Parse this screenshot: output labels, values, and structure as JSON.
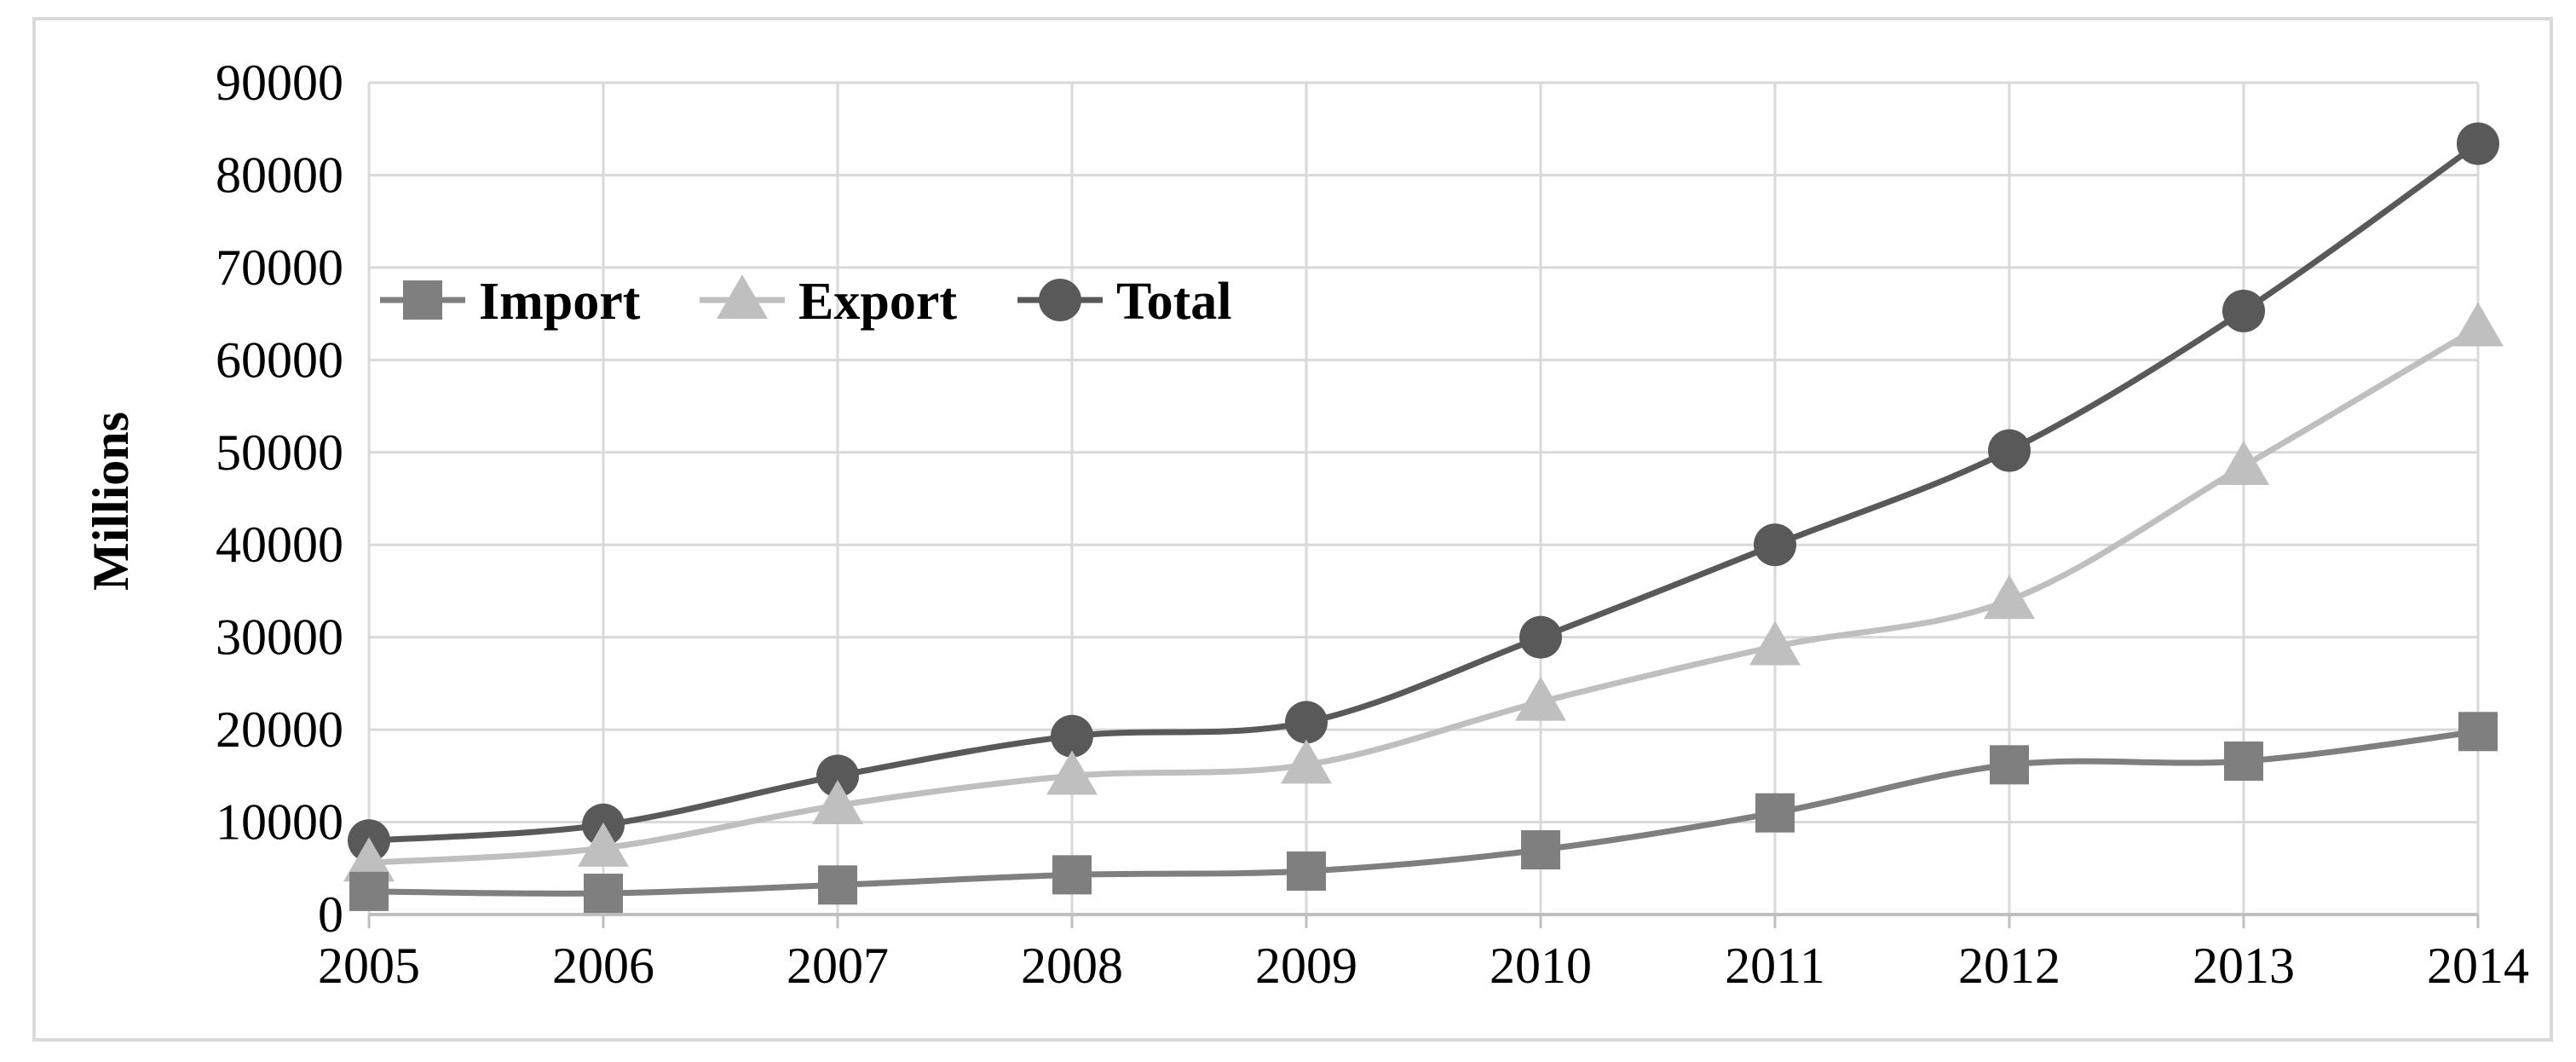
{
  "chart_data": {
    "type": "line",
    "title": "",
    "xlabel": "",
    "ylabel": "Millions",
    "x": [
      "2005",
      "2006",
      "2007",
      "2008",
      "2009",
      "2010",
      "2011",
      "2012",
      "2013",
      "2014"
    ],
    "ylim": [
      0,
      90000
    ],
    "yticks": [
      "0",
      "10000",
      "20000",
      "30000",
      "40000",
      "50000",
      "60000",
      "70000",
      "80000",
      "90000"
    ],
    "grid": true,
    "legend_position": "top-left",
    "smooth": true,
    "series": [
      {
        "name": "Import",
        "marker": "square",
        "color": "#7f7f7f",
        "values": [
          2500,
          2300,
          3200,
          4300,
          4700,
          7000,
          11000,
          16200,
          16600,
          19800
        ]
      },
      {
        "name": "Export",
        "marker": "triangle",
        "color": "#bfbfbf",
        "values": [
          5600,
          7200,
          11800,
          15000,
          16200,
          23000,
          29000,
          34000,
          48500,
          63500
        ]
      },
      {
        "name": "Total",
        "marker": "circle",
        "color": "#595959",
        "values": [
          8000,
          9700,
          15000,
          19300,
          20800,
          30000,
          40000,
          50200,
          65300,
          83400
        ]
      }
    ]
  }
}
